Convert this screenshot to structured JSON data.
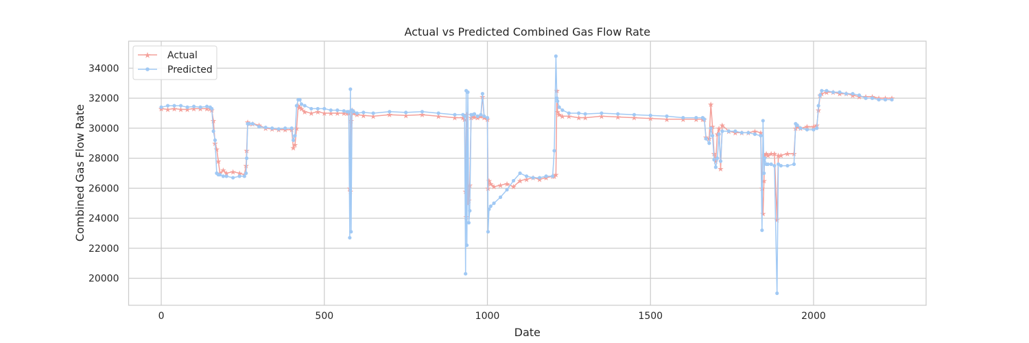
{
  "chart_data": {
    "type": "line",
    "title": "Actual vs Predicted Combined Gas Flow Rate",
    "xlabel": "Date",
    "ylabel": "Combined Gas Flow Rate",
    "xlim": [
      -100,
      2345
    ],
    "ylim": [
      18200,
      35800
    ],
    "xticks": [
      0,
      500,
      1000,
      1500,
      2000
    ],
    "yticks": [
      20000,
      22000,
      24000,
      26000,
      28000,
      30000,
      32000,
      34000
    ],
    "grid": true,
    "legend_position": "top-left",
    "series": [
      {
        "name": "Actual",
        "color": "#f4a09a",
        "marker": "star",
        "x": [
          0,
          20,
          40,
          60,
          80,
          100,
          120,
          140,
          150,
          155,
          160,
          165,
          170,
          175,
          180,
          190,
          200,
          220,
          240,
          255,
          260,
          262,
          265,
          270,
          280,
          300,
          320,
          340,
          360,
          380,
          400,
          405,
          410,
          415,
          420,
          425,
          430,
          440,
          460,
          480,
          500,
          520,
          540,
          560,
          570,
          575,
          578,
          580,
          582,
          585,
          590,
          600,
          620,
          650,
          700,
          750,
          800,
          850,
          900,
          925,
          930,
          933,
          935,
          937,
          940,
          943,
          946,
          950,
          955,
          960,
          970,
          980,
          985,
          990,
          1000,
          1002,
          1005,
          1010,
          1020,
          1040,
          1060,
          1080,
          1100,
          1120,
          1140,
          1160,
          1180,
          1200,
          1205,
          1210,
          1213,
          1215,
          1220,
          1230,
          1250,
          1280,
          1300,
          1350,
          1400,
          1450,
          1500,
          1550,
          1600,
          1640,
          1660,
          1665,
          1670,
          1680,
          1685,
          1690,
          1695,
          1700,
          1705,
          1710,
          1715,
          1720,
          1740,
          1760,
          1780,
          1800,
          1820,
          1838,
          1842,
          1845,
          1848,
          1850,
          1855,
          1860,
          1870,
          1880,
          1888,
          1892,
          1900,
          1920,
          1940,
          1945,
          1950,
          1960,
          1980,
          2000,
          2010,
          2015,
          2020,
          2025,
          2040,
          2060,
          2080,
          2100,
          2120,
          2140,
          2160,
          2180,
          2200,
          2220,
          2240
        ],
        "y": [
          31300,
          31250,
          31300,
          31250,
          31250,
          31300,
          31300,
          31300,
          31300,
          31200,
          30500,
          29000,
          28600,
          27800,
          27000,
          27200,
          27000,
          27100,
          27000,
          26900,
          27500,
          28500,
          30400,
          30300,
          30300,
          30200,
          30000,
          29950,
          29900,
          29900,
          29900,
          28700,
          28900,
          30000,
          31500,
          31400,
          31300,
          31100,
          31000,
          31100,
          31000,
          31000,
          31000,
          31000,
          31000,
          31000,
          26000,
          25800,
          30500,
          31200,
          31000,
          30900,
          30850,
          30800,
          30900,
          30850,
          30900,
          30800,
          30700,
          30700,
          30600,
          25800,
          24100,
          30900,
          25000,
          25200,
          26200,
          30700,
          30800,
          30750,
          30700,
          30800,
          32100,
          30700,
          30600,
          26000,
          26500,
          26300,
          26100,
          26200,
          26300,
          26100,
          26500,
          26600,
          26700,
          26600,
          26700,
          26800,
          26800,
          26900,
          32500,
          31100,
          30900,
          30800,
          30800,
          30700,
          30700,
          30800,
          30750,
          30700,
          30650,
          30600,
          30600,
          30600,
          30600,
          30600,
          29400,
          29300,
          31600,
          30100,
          28300,
          27800,
          29600,
          30000,
          27300,
          30200,
          29800,
          29700,
          29700,
          29700,
          29800,
          29700,
          26000,
          24300,
          26500,
          28200,
          28300,
          28200,
          28300,
          28300,
          23900,
          28200,
          28200,
          28300,
          28300,
          30000,
          30100,
          30000,
          30100,
          30100,
          30200,
          31200,
          32200,
          32300,
          32400,
          32400,
          32300,
          32300,
          32200,
          32100,
          32100,
          32100,
          32000,
          32000,
          32000
        ]
      },
      {
        "name": "Predicted",
        "color": "#a1c9f4",
        "marker": "dot",
        "x": [
          0,
          20,
          40,
          60,
          80,
          100,
          120,
          140,
          150,
          155,
          160,
          165,
          170,
          175,
          180,
          190,
          200,
          220,
          240,
          255,
          260,
          262,
          265,
          270,
          280,
          300,
          320,
          340,
          360,
          380,
          400,
          405,
          410,
          415,
          420,
          425,
          430,
          440,
          460,
          480,
          500,
          520,
          540,
          560,
          570,
          575,
          578,
          580,
          582,
          585,
          590,
          600,
          620,
          650,
          700,
          750,
          800,
          850,
          900,
          925,
          930,
          933,
          935,
          937,
          940,
          943,
          946,
          950,
          955,
          960,
          970,
          980,
          985,
          990,
          1000,
          1002,
          1005,
          1010,
          1020,
          1040,
          1060,
          1080,
          1100,
          1120,
          1140,
          1160,
          1180,
          1200,
          1205,
          1210,
          1213,
          1215,
          1220,
          1230,
          1250,
          1280,
          1300,
          1350,
          1400,
          1450,
          1500,
          1550,
          1600,
          1640,
          1660,
          1665,
          1670,
          1680,
          1685,
          1690,
          1695,
          1700,
          1705,
          1710,
          1715,
          1720,
          1740,
          1760,
          1780,
          1800,
          1820,
          1838,
          1842,
          1845,
          1848,
          1850,
          1855,
          1860,
          1870,
          1880,
          1888,
          1892,
          1900,
          1920,
          1940,
          1945,
          1950,
          1960,
          1980,
          2000,
          2010,
          2015,
          2020,
          2025,
          2040,
          2060,
          2080,
          2100,
          2120,
          2140,
          2160,
          2180,
          2200,
          2220,
          2240
        ],
        "y": [
          31400,
          31500,
          31500,
          31500,
          31400,
          31450,
          31400,
          31450,
          31400,
          31300,
          29800,
          29200,
          27000,
          26900,
          26900,
          26800,
          26800,
          26700,
          26800,
          26800,
          27000,
          28000,
          30300,
          30300,
          30300,
          30100,
          30050,
          30000,
          29950,
          30000,
          30000,
          29200,
          29500,
          31500,
          31900,
          31900,
          31600,
          31500,
          31300,
          31300,
          31300,
          31200,
          31200,
          31150,
          31100,
          31100,
          22700,
          32600,
          23100,
          31200,
          31100,
          31000,
          31050,
          31000,
          31100,
          31050,
          31100,
          31000,
          30900,
          30900,
          30800,
          20300,
          32500,
          22200,
          32400,
          23700,
          24500,
          30900,
          30900,
          30950,
          30800,
          30900,
          32300,
          30800,
          30700,
          23100,
          24600,
          24800,
          25000,
          25400,
          25900,
          26500,
          27000,
          26800,
          26700,
          26700,
          26800,
          26800,
          28500,
          34800,
          32000,
          31800,
          31400,
          31200,
          31000,
          31000,
          30950,
          31000,
          30950,
          30900,
          30850,
          30800,
          30700,
          30700,
          30700,
          30600,
          29300,
          29000,
          30000,
          29500,
          27900,
          27400,
          28000,
          29600,
          27800,
          29800,
          29800,
          29800,
          29700,
          29700,
          29600,
          29500,
          23200,
          30500,
          27000,
          28000,
          27600,
          27600,
          27600,
          27500,
          19000,
          27600,
          27500,
          27500,
          27600,
          30300,
          30200,
          30000,
          29900,
          29900,
          30000,
          31500,
          32200,
          32500,
          32500,
          32400,
          32400,
          32300,
          32300,
          32200,
          32000,
          32000,
          31900,
          31900,
          31900
        ]
      }
    ]
  }
}
